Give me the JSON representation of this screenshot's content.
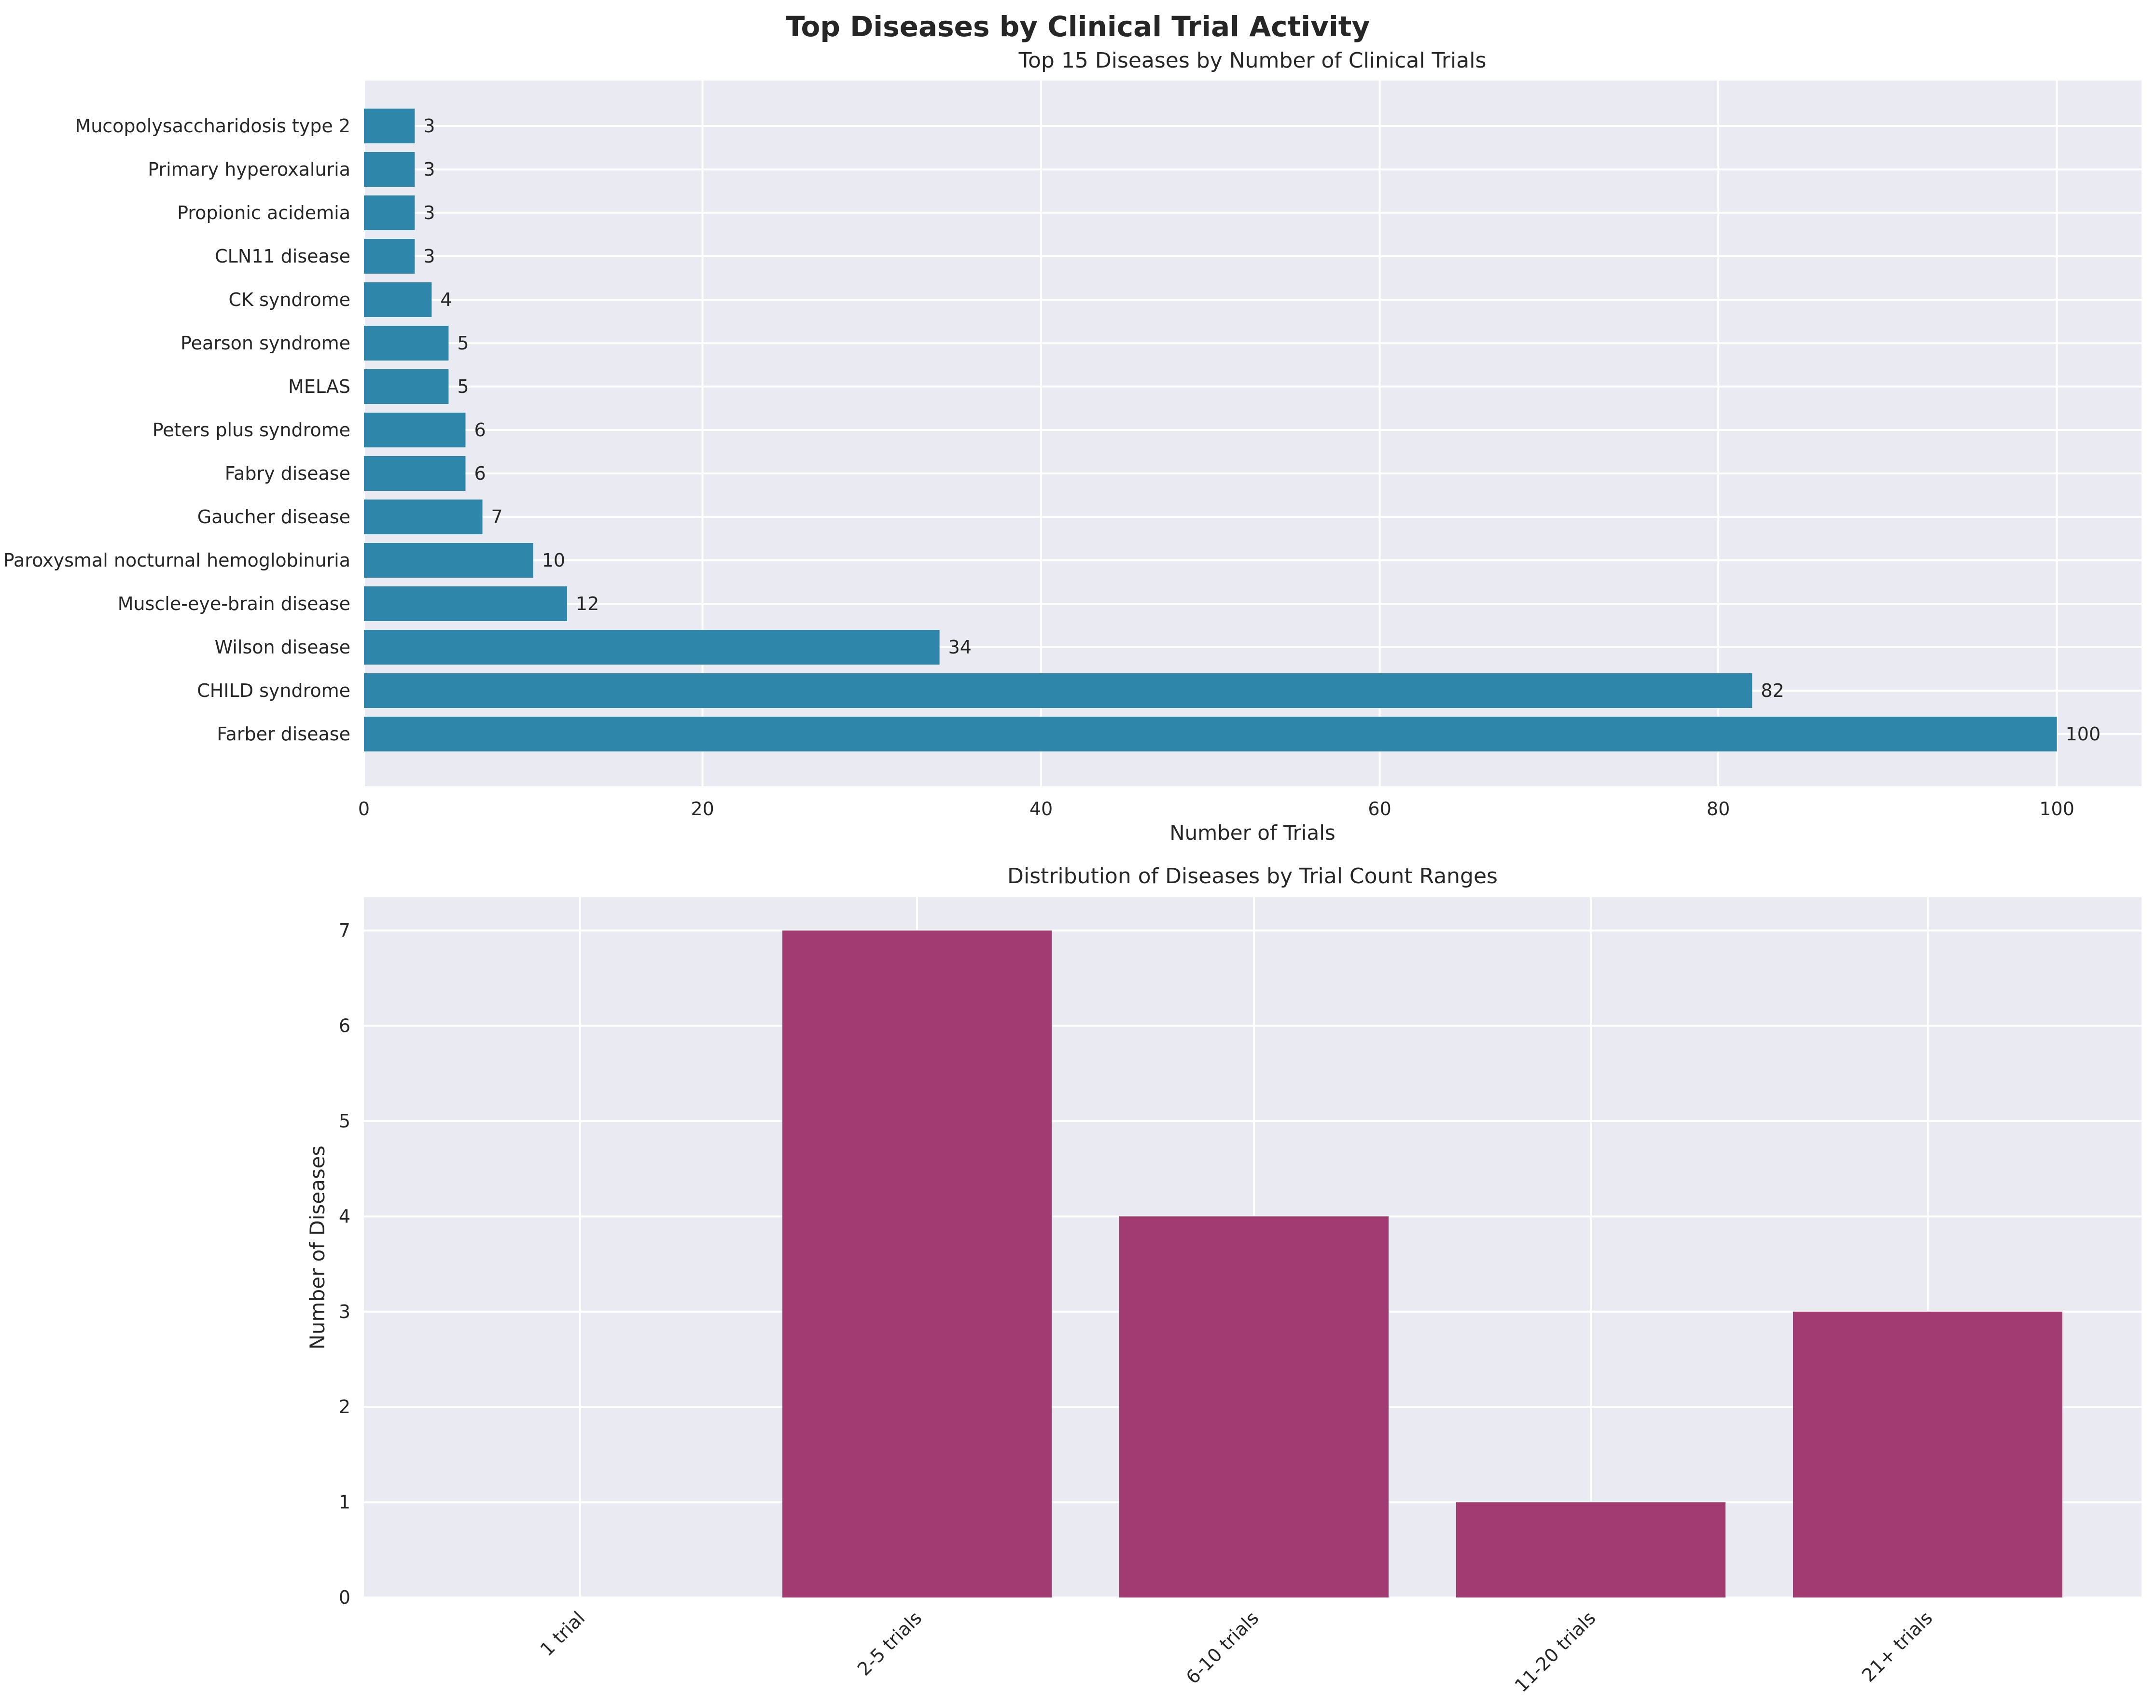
{
  "figure": {
    "title": "Top Diseases by Clinical Trial Activity"
  },
  "chart_data": [
    {
      "type": "bar",
      "orientation": "horizontal",
      "title": "Top 15 Diseases by Number of Clinical Trials",
      "xlabel": "Number of Trials",
      "ylabel": "",
      "xlim": [
        0,
        105
      ],
      "xticks": [
        0,
        20,
        40,
        60,
        80,
        100
      ],
      "grid": true,
      "bar_color": "#2e86ab",
      "categories": [
        "Farber disease",
        "CHILD syndrome",
        "Wilson disease",
        "Muscle-eye-brain disease",
        "Paroxysmal nocturnal hemoglobinuria",
        "Gaucher disease",
        "Fabry disease",
        "Peters plus syndrome",
        "MELAS",
        "Pearson syndrome",
        "CK syndrome",
        "CLN11 disease",
        "Propionic acidemia",
        "Primary hyperoxaluria",
        "Mucopolysaccharidosis type 2"
      ],
      "values": [
        100,
        82,
        34,
        12,
        10,
        7,
        6,
        6,
        5,
        5,
        4,
        3,
        3,
        3,
        3
      ],
      "value_labels": [
        "100",
        "82",
        "34",
        "12",
        "10",
        "7",
        "6",
        "6",
        "5",
        "5",
        "4",
        "3",
        "3",
        "3",
        "3"
      ]
    },
    {
      "type": "bar",
      "orientation": "vertical",
      "title": "Distribution of Diseases by Trial Count Ranges",
      "xlabel": "",
      "ylabel": "Number of Diseases",
      "ylim": [
        0,
        7.35
      ],
      "yticks": [
        0,
        1,
        2,
        3,
        4,
        5,
        6,
        7
      ],
      "grid": true,
      "bar_color": "#a23b72",
      "categories": [
        "1 trial",
        "2-5 trials",
        "6-10 trials",
        "11-20 trials",
        "21+ trials"
      ],
      "values": [
        0,
        7,
        4,
        1,
        3
      ]
    }
  ]
}
